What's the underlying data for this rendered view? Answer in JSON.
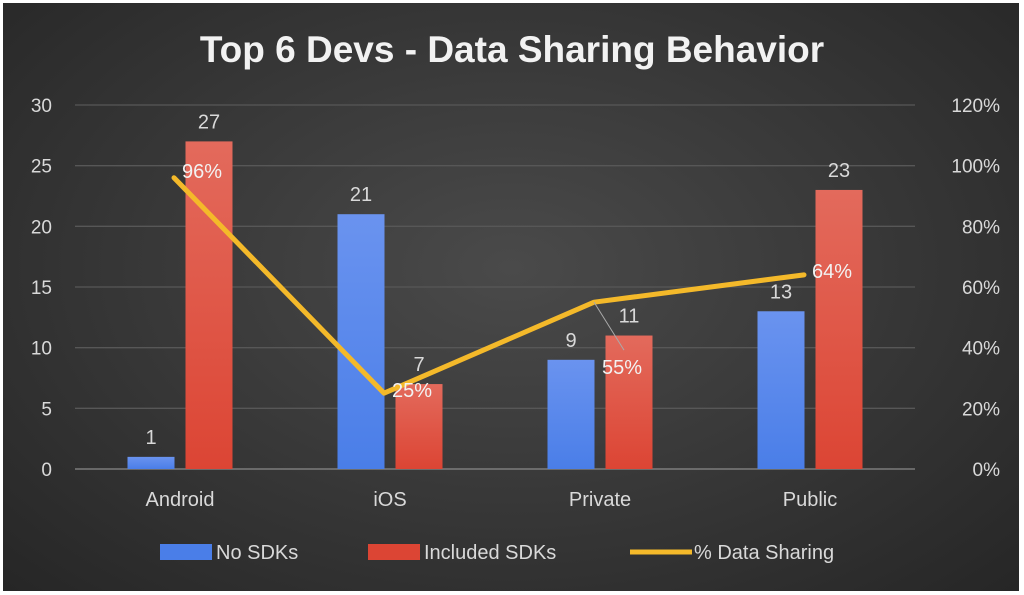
{
  "chart_data": {
    "type": "bar",
    "title": "Top 6 Devs - Data Sharing Behavior",
    "categories": [
      "Android",
      "iOS",
      "Private",
      "Public"
    ],
    "series": [
      {
        "name": "No SDKs",
        "type": "bar",
        "axis": "left",
        "color": "#4a7ee8",
        "values": [
          1,
          21,
          9,
          13
        ],
        "labels": [
          "1",
          "21",
          "9",
          "13"
        ]
      },
      {
        "name": "Included SDKs",
        "type": "bar",
        "axis": "left",
        "color": "#dc4534",
        "values": [
          27,
          7,
          11,
          23
        ],
        "labels": [
          "27",
          "7",
          "11",
          "23"
        ]
      },
      {
        "name": "% Data Sharing",
        "type": "line",
        "axis": "right",
        "color": "#f4b92a",
        "values": [
          96,
          25,
          55,
          64
        ],
        "labels": [
          "96%",
          "25%",
          "55%",
          "64%"
        ]
      }
    ],
    "y_left": {
      "range": [
        0,
        30
      ],
      "ticks": [
        "0",
        "5",
        "10",
        "15",
        "20",
        "25",
        "30"
      ]
    },
    "y_right": {
      "range": [
        0,
        120
      ],
      "ticks": [
        "0%",
        "20%",
        "40%",
        "60%",
        "80%",
        "100%",
        "120%"
      ]
    },
    "grid": true,
    "legend_position": "bottom"
  }
}
